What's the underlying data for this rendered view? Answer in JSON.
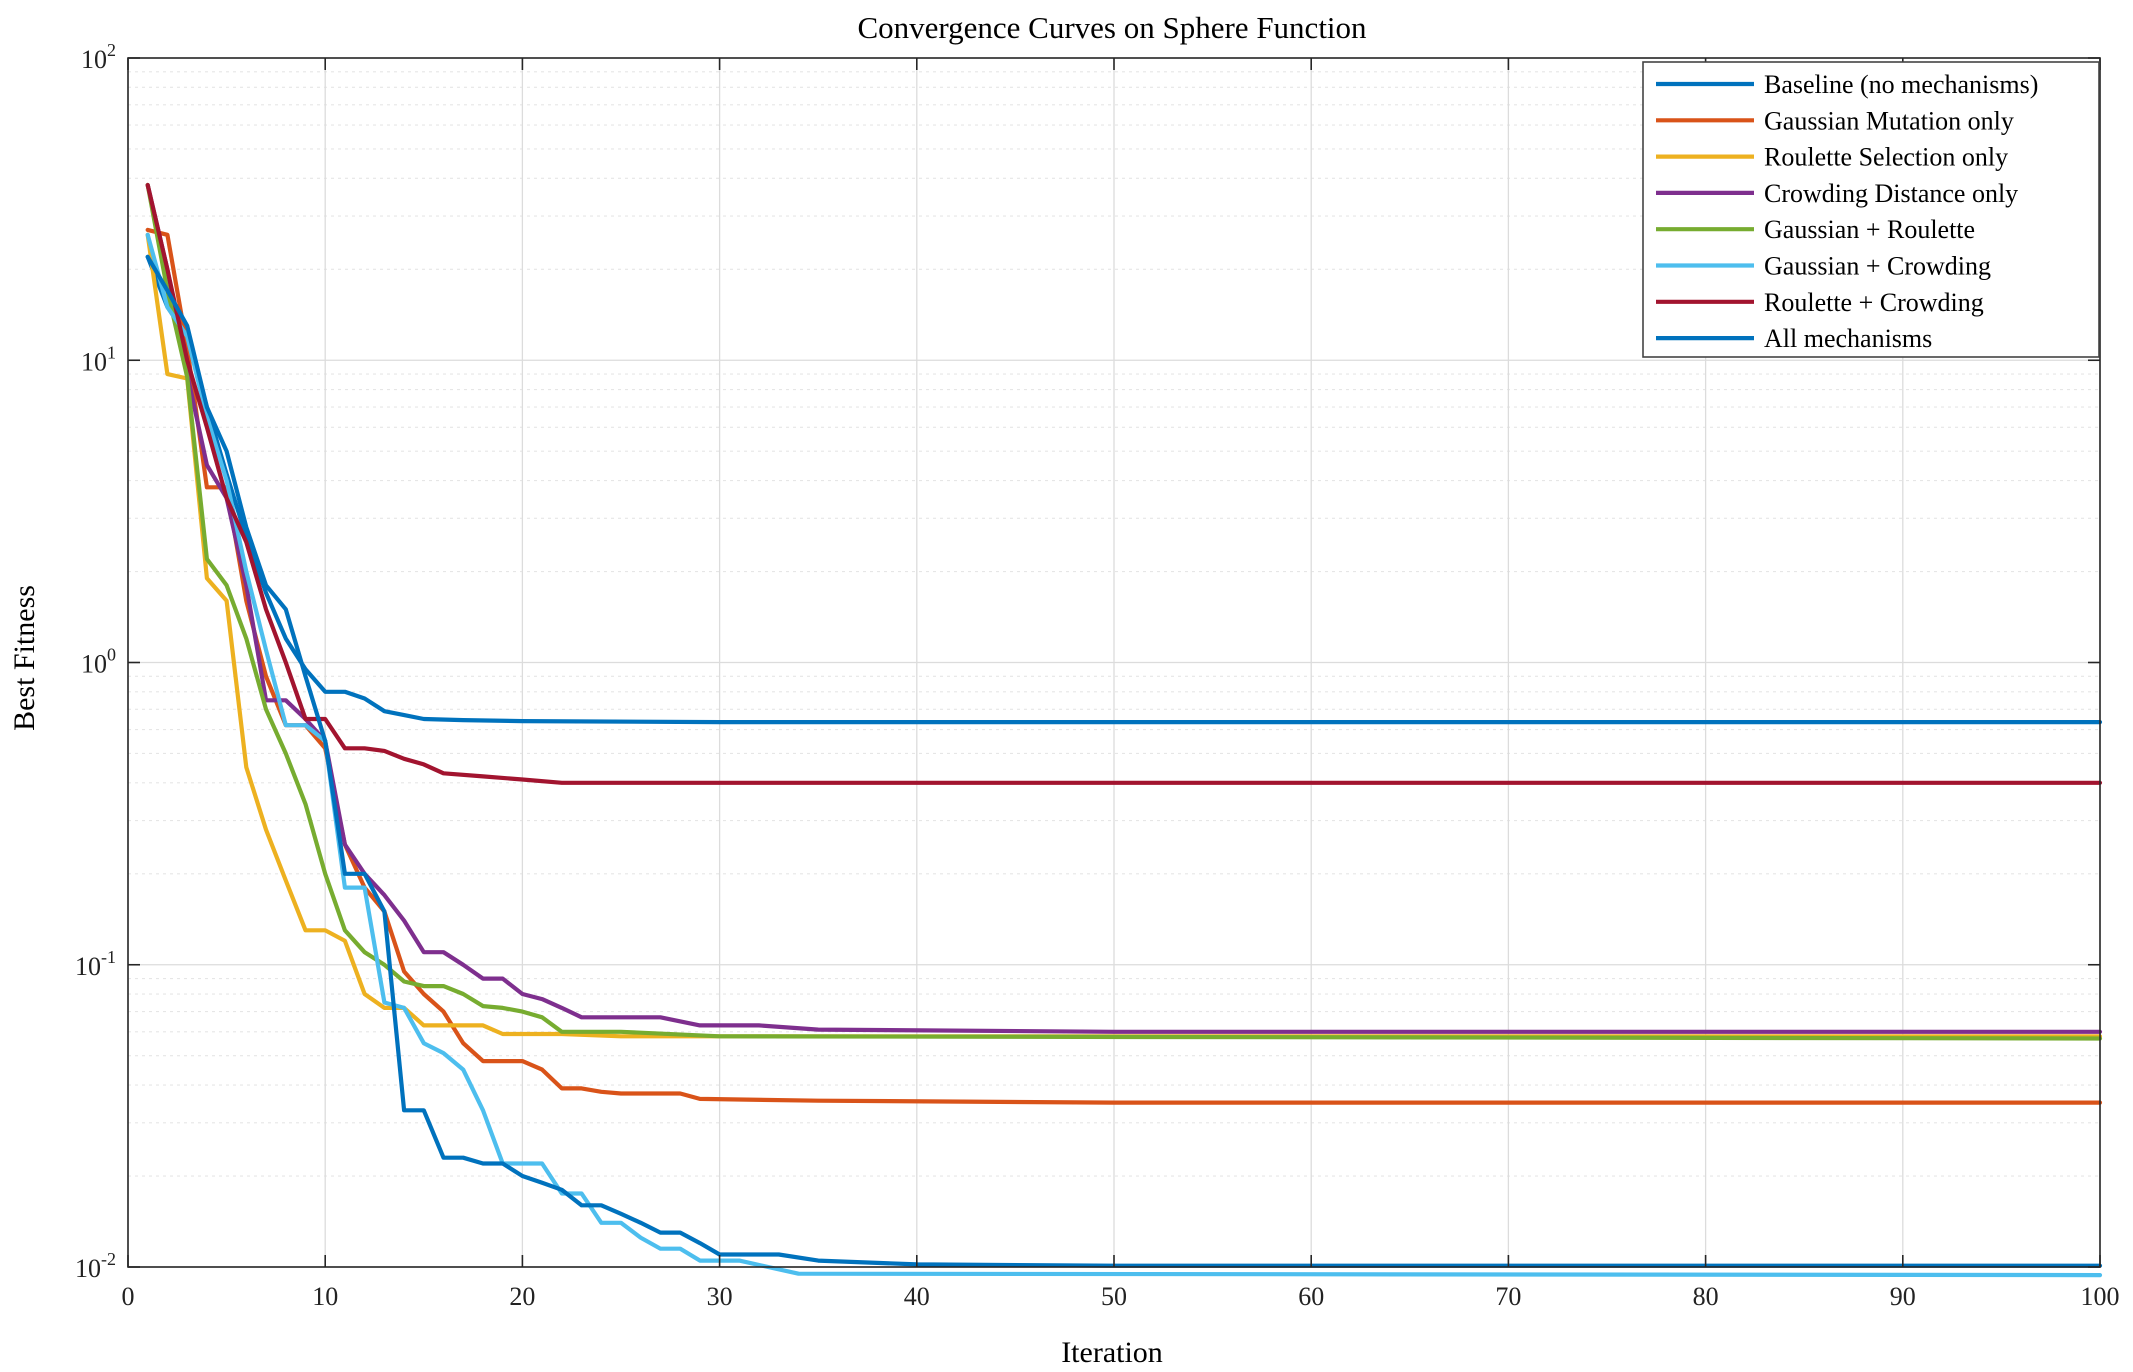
{
  "chart_data": {
    "type": "line",
    "title": "Convergence Curves on Sphere Function",
    "xlabel": "Iteration",
    "ylabel": "Best Fitness",
    "xlim": [
      0,
      100
    ],
    "ylim": [
      0.01,
      100
    ],
    "yscale": "log",
    "grid": true,
    "legend_position": "top-right",
    "xticks": [
      "0",
      "10",
      "20",
      "30",
      "40",
      "50",
      "60",
      "70",
      "80",
      "90",
      "100"
    ],
    "yticks": [
      {
        "base": "10",
        "exp": "-2",
        "value": 0.01
      },
      {
        "base": "10",
        "exp": "-1",
        "value": 0.1
      },
      {
        "base": "10",
        "exp": "0",
        "value": 1
      },
      {
        "base": "10",
        "exp": "1",
        "value": 10
      },
      {
        "base": "10",
        "exp": "2",
        "value": 100
      }
    ],
    "series": [
      {
        "name": "Baseline (no mechanisms)",
        "color": "#0072BD",
        "points": [
          [
            1,
            22
          ],
          [
            2,
            15
          ],
          [
            3,
            12
          ],
          [
            4,
            7
          ],
          [
            5,
            4.2
          ],
          [
            6,
            2.6
          ],
          [
            7,
            1.7
          ],
          [
            8,
            1.2
          ],
          [
            9,
            0.95
          ],
          [
            10,
            0.8
          ],
          [
            11,
            0.8
          ],
          [
            12,
            0.76
          ],
          [
            13,
            0.69
          ],
          [
            14,
            0.67
          ],
          [
            15,
            0.65
          ],
          [
            17,
            0.645
          ],
          [
            20,
            0.64
          ],
          [
            30,
            0.635
          ],
          [
            100,
            0.635
          ]
        ]
      },
      {
        "name": "Gaussian Mutation only",
        "color": "#D95319",
        "points": [
          [
            1,
            27
          ],
          [
            2,
            26
          ],
          [
            3,
            11
          ],
          [
            4,
            3.8
          ],
          [
            5,
            3.8
          ],
          [
            6,
            1.6
          ],
          [
            7,
            0.9
          ],
          [
            8,
            0.62
          ],
          [
            9,
            0.62
          ],
          [
            10,
            0.52
          ],
          [
            11,
            0.25
          ],
          [
            12,
            0.18
          ],
          [
            13,
            0.15
          ],
          [
            14,
            0.095
          ],
          [
            15,
            0.08
          ],
          [
            16,
            0.07
          ],
          [
            17,
            0.055
          ],
          [
            18,
            0.048
          ],
          [
            19,
            0.048
          ],
          [
            20,
            0.048
          ],
          [
            21,
            0.045
          ],
          [
            22,
            0.039
          ],
          [
            23,
            0.039
          ],
          [
            24,
            0.038
          ],
          [
            25,
            0.0375
          ],
          [
            28,
            0.0375
          ],
          [
            29,
            0.036
          ],
          [
            35,
            0.0355
          ],
          [
            50,
            0.035
          ],
          [
            100,
            0.035
          ]
        ]
      },
      {
        "name": "Roulette Selection only",
        "color": "#EDB120",
        "points": [
          [
            1,
            26
          ],
          [
            2,
            9
          ],
          [
            3,
            8.7
          ],
          [
            4,
            1.9
          ],
          [
            5,
            1.6
          ],
          [
            6,
            0.45
          ],
          [
            7,
            0.28
          ],
          [
            8,
            0.19
          ],
          [
            9,
            0.13
          ],
          [
            10,
            0.13
          ],
          [
            11,
            0.12
          ],
          [
            12,
            0.08
          ],
          [
            13,
            0.072
          ],
          [
            14,
            0.072
          ],
          [
            15,
            0.063
          ],
          [
            16,
            0.063
          ],
          [
            18,
            0.063
          ],
          [
            19,
            0.059
          ],
          [
            22,
            0.059
          ],
          [
            25,
            0.058
          ],
          [
            100,
            0.058
          ]
        ]
      },
      {
        "name": "Crowding Distance only",
        "color": "#7E2F8E",
        "points": [
          [
            1,
            38
          ],
          [
            2,
            20
          ],
          [
            3,
            9
          ],
          [
            4,
            4.5
          ],
          [
            5,
            3.5
          ],
          [
            6,
            1.8
          ],
          [
            7,
            0.75
          ],
          [
            8,
            0.75
          ],
          [
            9,
            0.65
          ],
          [
            10,
            0.55
          ],
          [
            11,
            0.25
          ],
          [
            12,
            0.2
          ],
          [
            13,
            0.17
          ],
          [
            14,
            0.14
          ],
          [
            15,
            0.11
          ],
          [
            16,
            0.11
          ],
          [
            17,
            0.1
          ],
          [
            18,
            0.09
          ],
          [
            19,
            0.09
          ],
          [
            20,
            0.08
          ],
          [
            21,
            0.077
          ],
          [
            22,
            0.072
          ],
          [
            23,
            0.067
          ],
          [
            27,
            0.067
          ],
          [
            29,
            0.063
          ],
          [
            32,
            0.063
          ],
          [
            35,
            0.061
          ],
          [
            50,
            0.06
          ],
          [
            100,
            0.06
          ]
        ]
      },
      {
        "name": "Gaussian + Roulette",
        "color": "#77AC30",
        "points": [
          [
            1,
            38
          ],
          [
            2,
            17
          ],
          [
            3,
            8.8
          ],
          [
            4,
            2.2
          ],
          [
            5,
            1.8
          ],
          [
            6,
            1.2
          ],
          [
            7,
            0.7
          ],
          [
            8,
            0.5
          ],
          [
            9,
            0.34
          ],
          [
            10,
            0.2
          ],
          [
            11,
            0.13
          ],
          [
            12,
            0.11
          ],
          [
            13,
            0.1
          ],
          [
            14,
            0.088
          ],
          [
            15,
            0.085
          ],
          [
            16,
            0.085
          ],
          [
            17,
            0.08
          ],
          [
            18,
            0.073
          ],
          [
            19,
            0.072
          ],
          [
            20,
            0.07
          ],
          [
            21,
            0.067
          ],
          [
            22,
            0.06
          ],
          [
            25,
            0.06
          ],
          [
            30,
            0.058
          ],
          [
            100,
            0.057
          ]
        ]
      },
      {
        "name": "Gaussian + Crowding",
        "color": "#4DBEEE",
        "points": [
          [
            1,
            26
          ],
          [
            2,
            15
          ],
          [
            3,
            12
          ],
          [
            4,
            6.5
          ],
          [
            5,
            4
          ],
          [
            6,
            2
          ],
          [
            7,
            1.1
          ],
          [
            8,
            0.62
          ],
          [
            9,
            0.62
          ],
          [
            10,
            0.55
          ],
          [
            11,
            0.18
          ],
          [
            12,
            0.18
          ],
          [
            13,
            0.075
          ],
          [
            14,
            0.072
          ],
          [
            15,
            0.055
          ],
          [
            16,
            0.051
          ],
          [
            17,
            0.045
          ],
          [
            18,
            0.033
          ],
          [
            19,
            0.022
          ],
          [
            20,
            0.022
          ],
          [
            21,
            0.022
          ],
          [
            22,
            0.0175
          ],
          [
            23,
            0.0175
          ],
          [
            24,
            0.014
          ],
          [
            25,
            0.014
          ],
          [
            26,
            0.0125
          ],
          [
            27,
            0.0115
          ],
          [
            28,
            0.0115
          ],
          [
            29,
            0.0105
          ],
          [
            31,
            0.0105
          ],
          [
            34,
            0.0095
          ],
          [
            100,
            0.0094
          ]
        ]
      },
      {
        "name": "Roulette + Crowding",
        "color": "#A2142F",
        "points": [
          [
            1,
            38
          ],
          [
            2,
            20
          ],
          [
            3,
            10
          ],
          [
            4,
            6
          ],
          [
            5,
            3.5
          ],
          [
            6,
            2.5
          ],
          [
            7,
            1.5
          ],
          [
            8,
            1
          ],
          [
            9,
            0.65
          ],
          [
            10,
            0.65
          ],
          [
            11,
            0.52
          ],
          [
            12,
            0.52
          ],
          [
            13,
            0.51
          ],
          [
            14,
            0.48
          ],
          [
            15,
            0.46
          ],
          [
            16,
            0.43
          ],
          [
            18,
            0.42
          ],
          [
            20,
            0.41
          ],
          [
            22,
            0.4
          ],
          [
            24,
            0.4
          ],
          [
            100,
            0.4
          ]
        ]
      },
      {
        "name": "All mechanisms",
        "color": "#0072BD",
        "points": [
          [
            1,
            22
          ],
          [
            2,
            17
          ],
          [
            3,
            13
          ],
          [
            4,
            7
          ],
          [
            5,
            5
          ],
          [
            6,
            2.8
          ],
          [
            7,
            1.8
          ],
          [
            8,
            1.5
          ],
          [
            9,
            0.9
          ],
          [
            10,
            0.55
          ],
          [
            11,
            0.2
          ],
          [
            12,
            0.2
          ],
          [
            13,
            0.15
          ],
          [
            14,
            0.033
          ],
          [
            15,
            0.033
          ],
          [
            16,
            0.023
          ],
          [
            17,
            0.023
          ],
          [
            18,
            0.022
          ],
          [
            19,
            0.022
          ],
          [
            20,
            0.02
          ],
          [
            21,
            0.019
          ],
          [
            22,
            0.018
          ],
          [
            23,
            0.016
          ],
          [
            24,
            0.016
          ],
          [
            25,
            0.015
          ],
          [
            26,
            0.014
          ],
          [
            27,
            0.013
          ],
          [
            28,
            0.013
          ],
          [
            29,
            0.012
          ],
          [
            30,
            0.011
          ],
          [
            33,
            0.011
          ],
          [
            35,
            0.0105
          ],
          [
            40,
            0.0102
          ],
          [
            50,
            0.0101
          ],
          [
            100,
            0.0101
          ]
        ]
      }
    ]
  }
}
